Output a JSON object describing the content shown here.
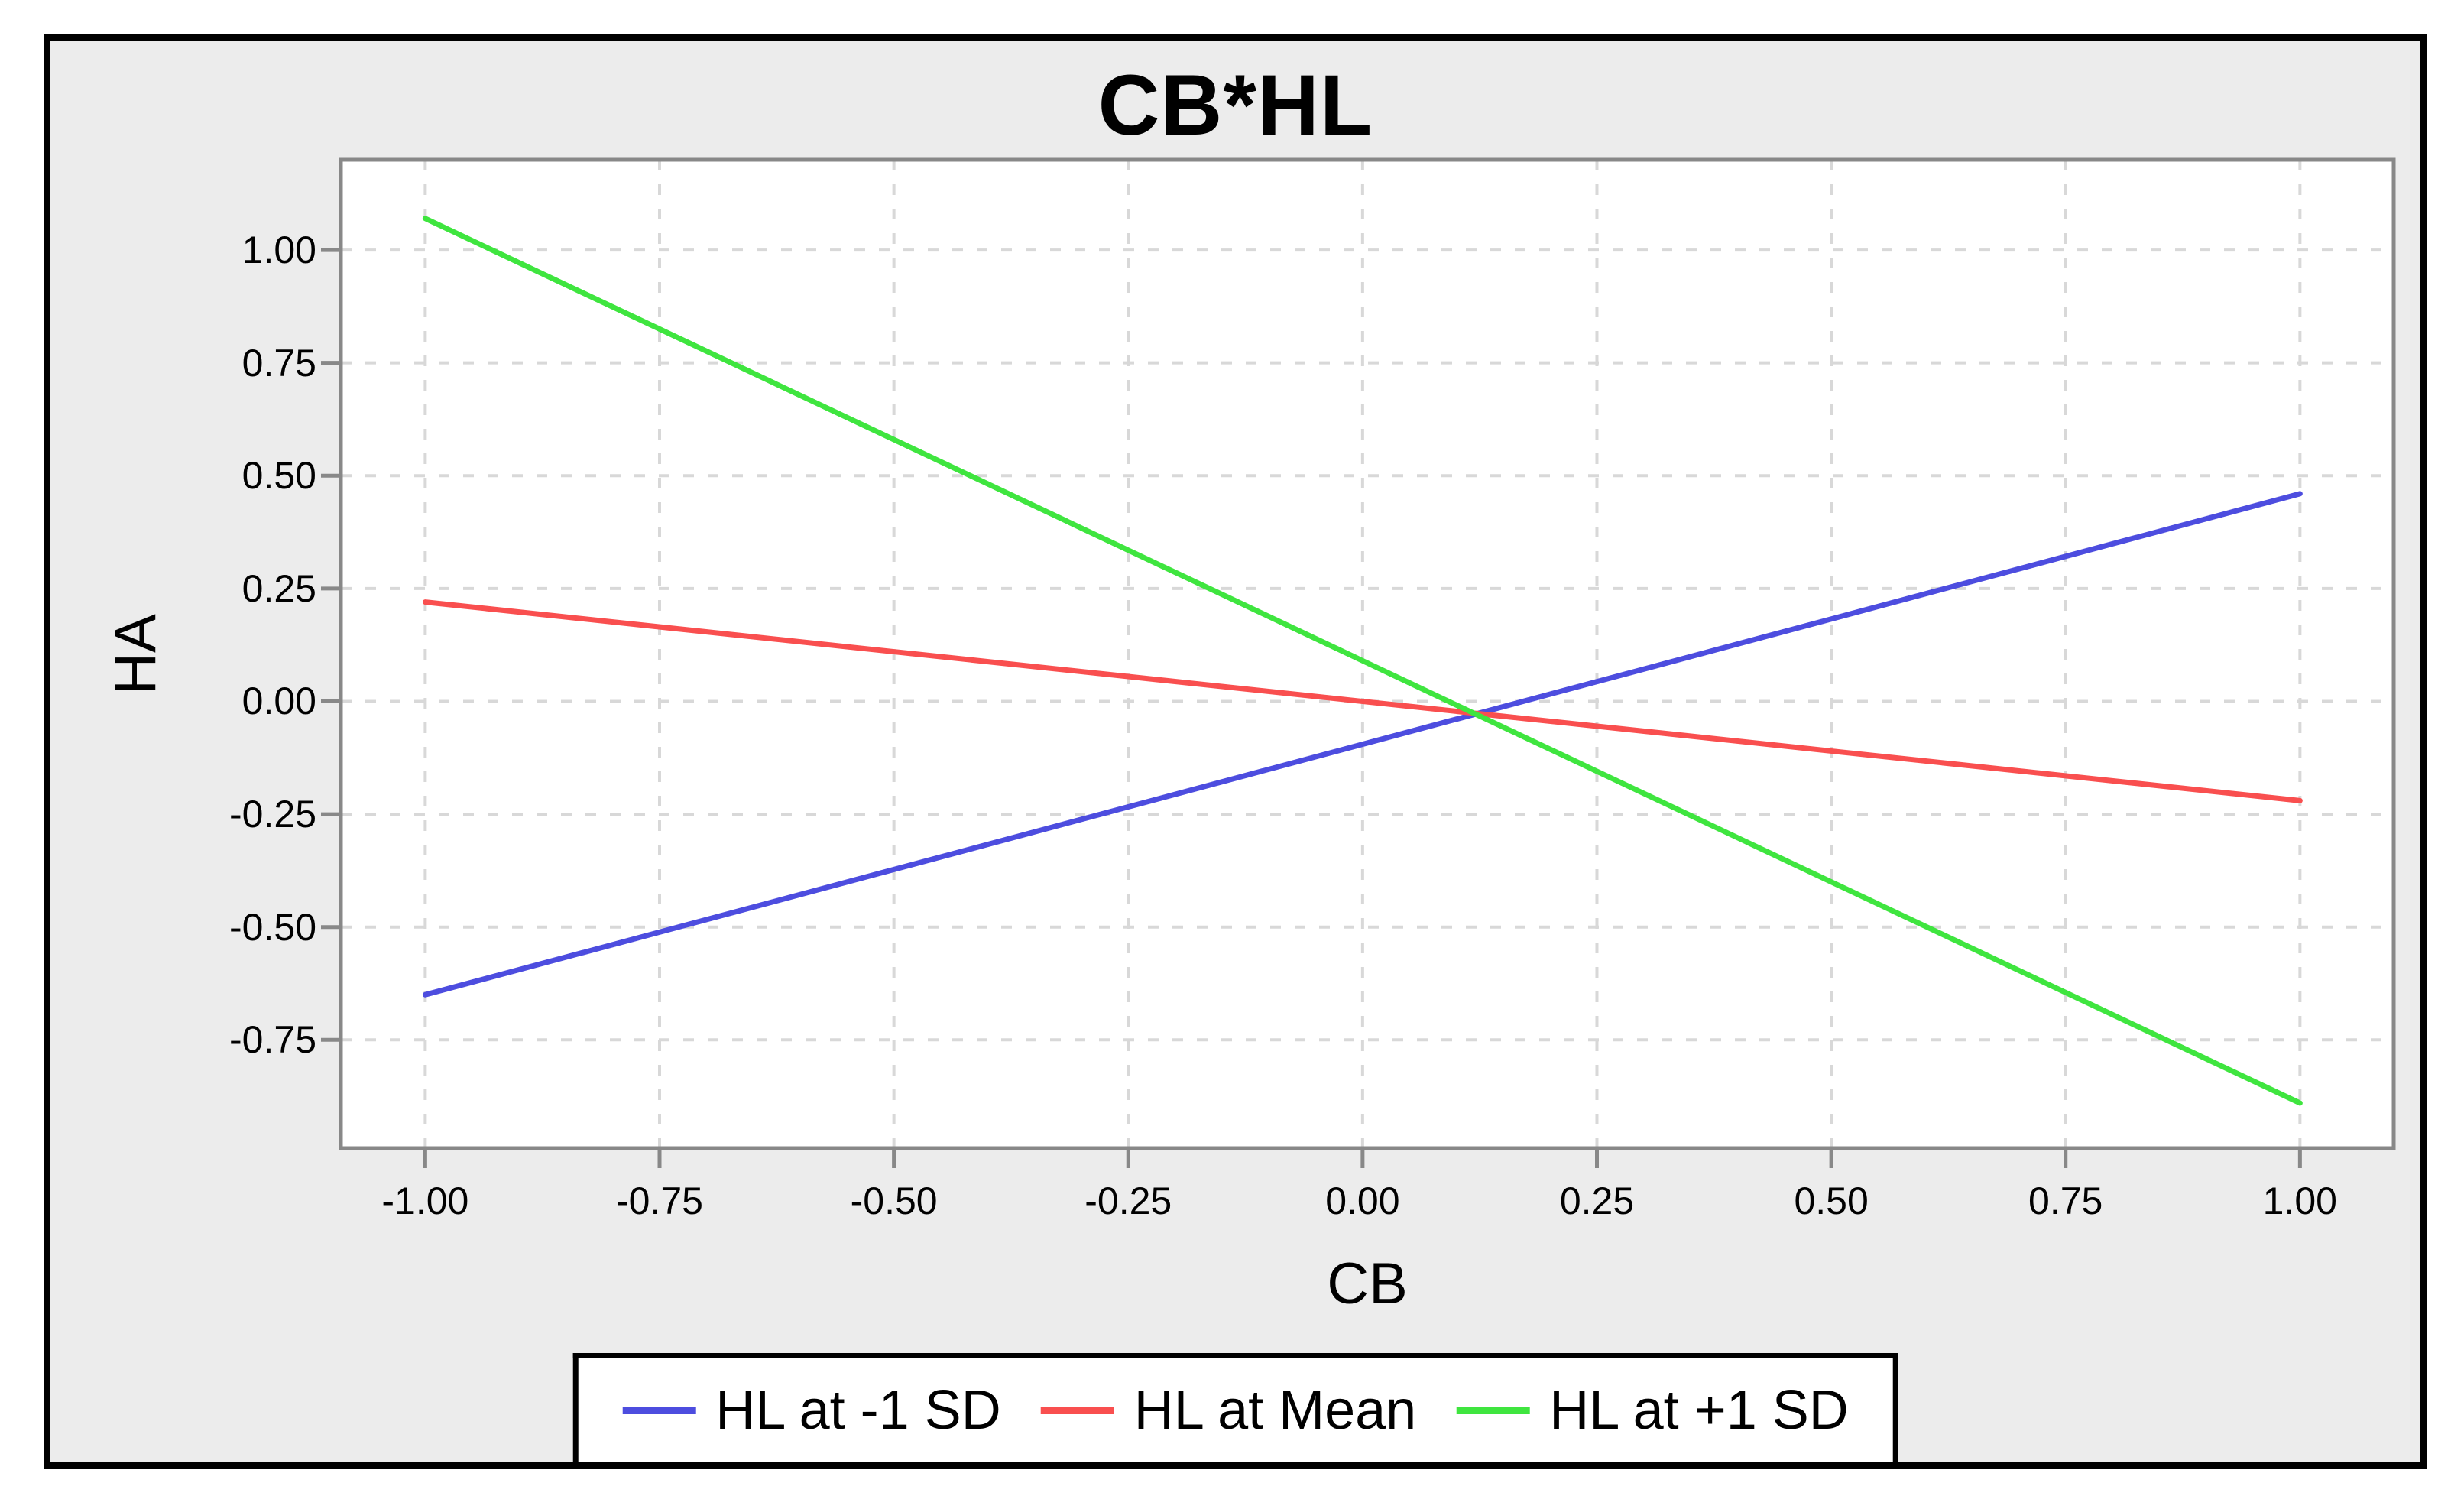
{
  "chart_data": {
    "type": "line",
    "title": "CB*HL",
    "xlabel": "CB",
    "ylabel": "HA",
    "xlim": [
      -1.09,
      1.1
    ],
    "ylim": [
      -0.99,
      1.2
    ],
    "grid": "dashed",
    "legend_position": "bottom",
    "x_tick_labels": [
      "-1.00",
      "-0.75",
      "-0.50",
      "-0.25",
      "0.00",
      "0.25",
      "0.50",
      "0.75",
      "1.00"
    ],
    "x_tick_values": [
      -1.0,
      -0.75,
      -0.5,
      -0.25,
      0.0,
      0.25,
      0.5,
      0.75,
      1.0
    ],
    "y_tick_labels": [
      "1.00",
      "0.75",
      "0.50",
      "0.25",
      "0.00",
      "-0.25",
      "-0.50",
      "-0.75"
    ],
    "y_tick_values": [
      1.0,
      0.75,
      0.5,
      0.25,
      0.0,
      -0.25,
      -0.5,
      -0.75
    ],
    "series": [
      {
        "name": "HL at -1 SD",
        "color": "#4d4ddf",
        "x": [
          -1.0,
          1.0
        ],
        "y": [
          -0.65,
          0.46
        ]
      },
      {
        "name": "HL at Mean",
        "color": "#f94f4f",
        "x": [
          -1.0,
          1.0
        ],
        "y": [
          0.22,
          -0.22
        ]
      },
      {
        "name": "HL at +1 SD",
        "color": "#3fe53f",
        "x": [
          -1.0,
          1.0
        ],
        "y": [
          1.07,
          -0.89
        ]
      }
    ]
  },
  "colors": {
    "frame": "#000000",
    "panel_bg": "#ececec",
    "plot_bg": "#ffffff",
    "plot_border": "#888888",
    "gridline": "#d8d8d8",
    "tick": "#888888",
    "text": "#000000"
  }
}
